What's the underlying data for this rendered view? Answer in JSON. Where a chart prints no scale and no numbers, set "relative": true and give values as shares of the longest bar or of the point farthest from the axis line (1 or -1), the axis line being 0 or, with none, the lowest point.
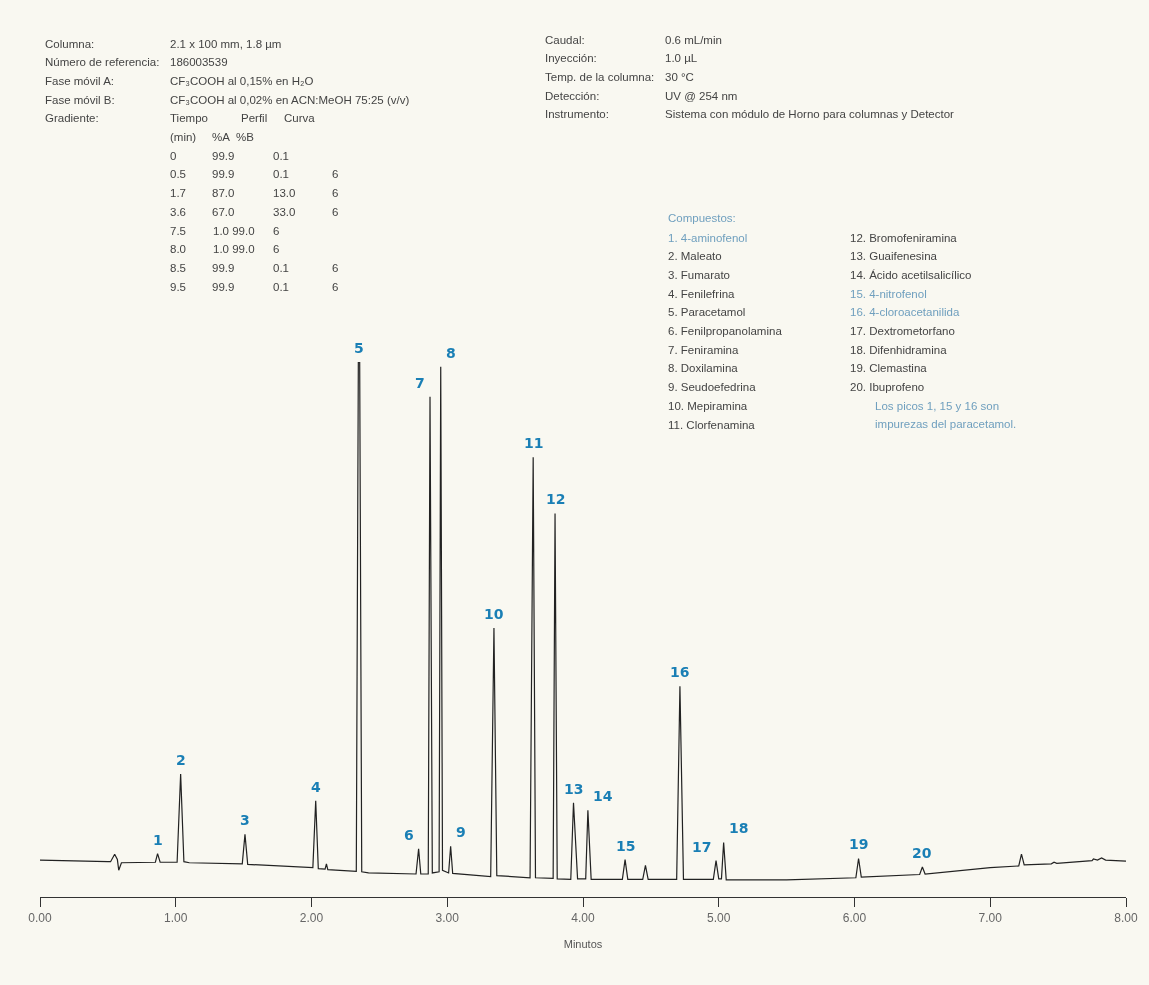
{
  "chart_data": {
    "type": "line",
    "relative": true,
    "xlabel": "Minutos",
    "tick_labels": "x",
    "xlim": [
      0,
      8
    ],
    "xticks": [
      {
        "value": 0,
        "label": "0.00"
      },
      {
        "value": 1,
        "label": "1.00"
      },
      {
        "value": 2,
        "label": "2.00"
      },
      {
        "value": 3,
        "label": "3.00"
      },
      {
        "value": 4,
        "label": "4.00"
      },
      {
        "value": 5,
        "label": "5.00"
      },
      {
        "value": 6,
        "label": "6.00"
      },
      {
        "value": 7,
        "label": "7.00"
      },
      {
        "value": 8,
        "label": "8.00"
      }
    ],
    "x": [
      0,
      0.5,
      0.52,
      0.55,
      0.57,
      0.58,
      0.6,
      0.85,
      0.866,
      0.885,
      1.01,
      1.036,
      1.06,
      1.1,
      1.49,
      1.51,
      1.53,
      2.01,
      2.031,
      2.05,
      2.1,
      2.11,
      2.12,
      2.33,
      2.345,
      2.355,
      2.37,
      2.42,
      2.77,
      2.789,
      2.805,
      2.86,
      2.873,
      2.89,
      2.94,
      2.952,
      2.965,
      3.01,
      3.025,
      3.04,
      3.32,
      3.344,
      3.365,
      3.61,
      3.633,
      3.65,
      3.78,
      3.794,
      3.81,
      3.91,
      3.93,
      3.96,
      4.02,
      4.036,
      4.06,
      4.29,
      4.31,
      4.33,
      4.44,
      4.46,
      4.48,
      4.69,
      4.714,
      4.74,
      4.96,
      4.98,
      5.0,
      5.02,
      5.036,
      5.055,
      5.5,
      6.01,
      6.03,
      6.05,
      6.48,
      6.5,
      6.52,
      7.0,
      7.21,
      7.23,
      7.25,
      7.45,
      7.47,
      7.49,
      7.75,
      7.76,
      7.79,
      7.82,
      7.85,
      8.0
    ],
    "series": [
      {
        "color": "#222222",
        "values": [
          0.069,
          0.066,
          0.066,
          0.08,
          0.07,
          0.05,
          0.064,
          0.065,
          0.081,
          0.065,
          0.065,
          0.23,
          0.066,
          0.064,
          0.062,
          0.117,
          0.061,
          0.055,
          0.18,
          0.053,
          0.052,
          0.062,
          0.051,
          0.048,
          1.0,
          1.0,
          0.047,
          0.045,
          0.043,
          0.09,
          0.043,
          0.043,
          0.935,
          0.045,
          0.047,
          0.991,
          0.05,
          0.045,
          0.095,
          0.044,
          0.038,
          0.503,
          0.04,
          0.036,
          0.822,
          0.036,
          0.035,
          0.717,
          0.034,
          0.033,
          0.176,
          0.034,
          0.034,
          0.162,
          0.033,
          0.033,
          0.07,
          0.033,
          0.033,
          0.059,
          0.033,
          0.033,
          0.394,
          0.033,
          0.033,
          0.068,
          0.034,
          0.034,
          0.102,
          0.032,
          0.032,
          0.036,
          0.072,
          0.037,
          0.042,
          0.056,
          0.043,
          0.055,
          0.058,
          0.08,
          0.06,
          0.062,
          0.065,
          0.063,
          0.068,
          0.071,
          0.069,
          0.073,
          0.069,
          0.067
        ]
      }
    ],
    "annotations": [
      "Columna:",
      "2.1 x 100 mm, 1.8 µm",
      "Número de referencia:",
      "186003539",
      "Fase móvil A:",
      "CF₃COOH al 0,15% en H₂O",
      "Fase móvil B:",
      "CF₃COOH al 0,02% en ACN:MeOH 75:25 (v/v)",
      "Gradiente:",
      "Tiempo",
      "Perfil",
      "Curva",
      "(min)",
      "%A",
      "%B",
      "0",
      "99.9",
      "0.1",
      "0.5",
      "99.9",
      "0.1",
      "6",
      "1.7",
      "87.0",
      "13.0",
      "6",
      "3.6",
      "67.0",
      "33.0",
      "6",
      "7.5",
      "1.0 99.0",
      "6",
      "8.0",
      "1.0 99.0",
      "6",
      "8.5",
      "99.9",
      "0.1",
      "6",
      "9.5",
      "99.9",
      "0.1",
      "6",
      "Caudal:",
      "0.6 mL/min",
      "Inyección:",
      "1.0 µL",
      "Temp. de la columna:",
      "30 °C",
      "Detección:",
      "UV @ 254 nm",
      "Instrumento:",
      "Sistema con módulo de Horno para columnas y Detector",
      "Compuestos:",
      "1. 4-aminofenol",
      "2. Maleato",
      "3. Fumarato",
      "4. Fenilefrina",
      "5. Paracetamol",
      "6. Fenilpropanolamina",
      "7. Feniramina",
      "8. Doxilamina",
      "9. Seudoefedrina",
      "10. Mepiramina",
      "11. Clorfenamina",
      "12. Bromofeniramina",
      "13. Guaifenesina",
      "14. Ácido acetilsalicílico",
      "15. 4-nitrofenol",
      "16. 4-cloroacetanilida",
      "17. Dextrometorfano",
      "18. Difenhidramina",
      "19. Clemastina",
      "20. Ibuprofeno",
      "Los picos 1, 15 y 16 son impurezas del paracetamol.",
      {
        "text": "1",
        "x": 0.866,
        "y": 0.081
      },
      {
        "text": "2",
        "x": 1.036,
        "y": 0.23
      },
      {
        "text": "3",
        "x": 1.51,
        "y": 0.117
      },
      {
        "text": "4",
        "x": 2.031,
        "y": 0.18
      },
      {
        "text": "5",
        "x": 2.35,
        "y": 1.0
      },
      {
        "text": "6",
        "x": 2.789,
        "y": 0.09
      },
      {
        "text": "7",
        "x": 2.873,
        "y": 0.935
      },
      {
        "text": "8",
        "x": 2.952,
        "y": 0.991
      },
      {
        "text": "9",
        "x": 3.025,
        "y": 0.095
      },
      {
        "text": "10",
        "x": 3.344,
        "y": 0.503
      },
      {
        "text": "11",
        "x": 3.633,
        "y": 0.822
      },
      {
        "text": "12",
        "x": 3.794,
        "y": 0.717
      },
      {
        "text": "13",
        "x": 3.93,
        "y": 0.176
      },
      {
        "text": "14",
        "x": 4.036,
        "y": 0.162
      },
      {
        "text": "15",
        "x": 4.31,
        "y": 0.07
      },
      {
        "text": "16",
        "x": 4.714,
        "y": 0.394
      },
      {
        "text": "17",
        "x": 4.98,
        "y": 0.068
      },
      {
        "text": "18",
        "x": 5.036,
        "y": 0.102
      },
      {
        "text": "19",
        "x": 6.03,
        "y": 0.072
      },
      {
        "text": "20",
        "x": 6.5,
        "y": 0.056
      }
    ]
  }
}
